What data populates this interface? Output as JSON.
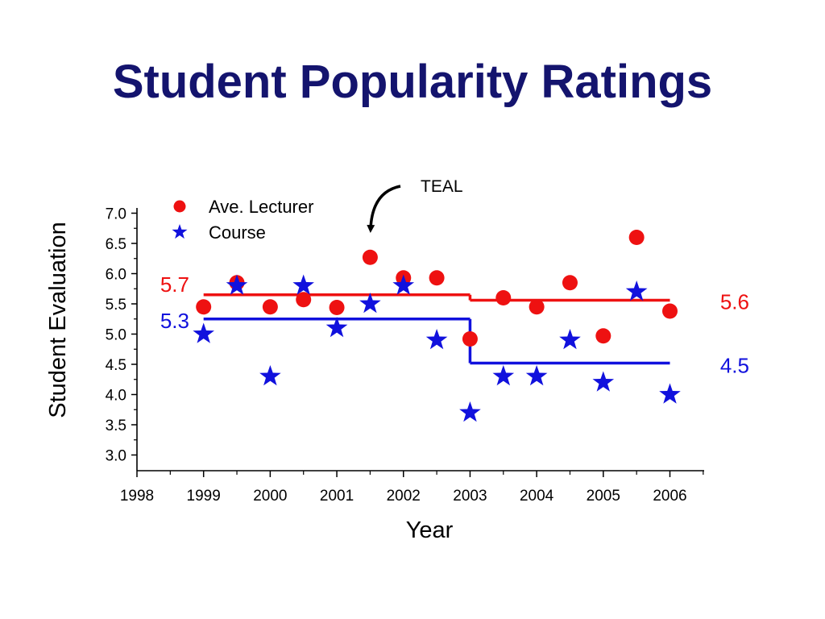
{
  "slide": {
    "title": "Student Popularity Ratings"
  },
  "chart_data": {
    "type": "scatter",
    "xlabel": "Year",
    "ylabel": "Student Evaluation",
    "xlim": [
      1998,
      2006.5
    ],
    "ylim": [
      2.75,
      7.1
    ],
    "xticks": [
      1998,
      1999,
      2000,
      2001,
      2002,
      2003,
      2004,
      2005,
      2006
    ],
    "yticks": [
      3.0,
      3.5,
      4.0,
      4.5,
      5.0,
      5.5,
      6.0,
      6.5,
      7.0
    ],
    "tick_labels_y": [
      "3.0",
      "3.5",
      "4.0",
      "4.5",
      "5.0",
      "5.5",
      "6.0",
      "6.5",
      "7.0"
    ],
    "legend_position": "top-left",
    "series": [
      {
        "name": "Ave. Lecturer",
        "marker": "circle",
        "color": "#ee1111",
        "x": [
          1999,
          1999.5,
          2000,
          2000.5,
          2001,
          2001.5,
          2002,
          2002.5,
          2003,
          2003.5,
          2004,
          2004.5,
          2005,
          2005.5,
          2006
        ],
        "y": [
          5.45,
          5.85,
          5.45,
          5.57,
          5.44,
          6.27,
          5.93,
          5.93,
          4.92,
          5.6,
          5.45,
          5.85,
          4.97,
          6.6,
          5.38
        ]
      },
      {
        "name": "Course",
        "marker": "star",
        "color": "#1111dd",
        "x": [
          1999,
          1999.5,
          2000,
          2000.5,
          2001,
          2001.5,
          2002,
          2002.5,
          2003,
          2003.5,
          2004,
          2004.5,
          2005,
          2005.5,
          2006
        ],
        "y": [
          5.0,
          5.8,
          4.3,
          5.8,
          5.1,
          5.5,
          5.8,
          4.9,
          3.7,
          4.3,
          4.3,
          4.9,
          4.2,
          5.7,
          4.0
        ]
      }
    ],
    "average_lines": [
      {
        "series": "Ave. Lecturer",
        "from": 1999,
        "to": 2003,
        "y": 5.65,
        "label": "5.7",
        "label_side": "left",
        "color": "#ee1111"
      },
      {
        "series": "Ave. Lecturer",
        "from": 2003,
        "to": 2006,
        "y": 5.56,
        "label": "5.6",
        "label_side": "right",
        "color": "#ee1111"
      },
      {
        "series": "Course",
        "from": 1999,
        "to": 2003,
        "y": 5.25,
        "label": "5.3",
        "label_side": "left",
        "color": "#1111dd"
      },
      {
        "series": "Course",
        "from": 2003,
        "to": 2006,
        "y": 4.52,
        "label": "4.5",
        "label_side": "right",
        "color": "#1111dd"
      }
    ],
    "annotation": {
      "text": "TEAL",
      "points_to_x": 2001.5
    }
  }
}
